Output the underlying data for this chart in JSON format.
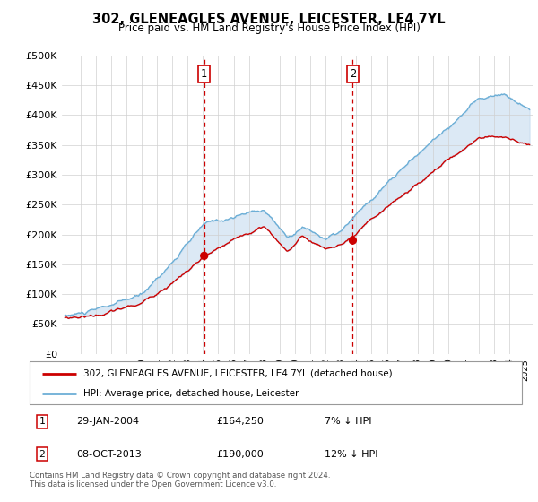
{
  "title": "302, GLENEAGLES AVENUE, LEICESTER, LE4 7YL",
  "subtitle": "Price paid vs. HM Land Registry's House Price Index (HPI)",
  "ylim": [
    0,
    500000
  ],
  "yticks": [
    0,
    50000,
    100000,
    150000,
    200000,
    250000,
    300000,
    350000,
    400000,
    450000,
    500000
  ],
  "ytick_labels": [
    "£0",
    "£50K",
    "£100K",
    "£150K",
    "£200K",
    "£250K",
    "£300K",
    "£350K",
    "£400K",
    "£450K",
    "£500K"
  ],
  "xlim_start": 1994.8,
  "xlim_end": 2025.5,
  "hpi_color": "#6baed6",
  "sale_color": "#cc0000",
  "fill_color": "#c6dbef",
  "marker1_x": 2004.08,
  "marker1_y": 164250,
  "marker1_label": "1",
  "marker1_date": "29-JAN-2004",
  "marker1_price": "£164,250",
  "marker1_hpi": "7% ↓ HPI",
  "marker2_x": 2013.77,
  "marker2_y": 190000,
  "marker2_label": "2",
  "marker2_date": "08-OCT-2013",
  "marker2_price": "£190,000",
  "marker2_hpi": "12% ↓ HPI",
  "legend_label1": "302, GLENEAGLES AVENUE, LEICESTER, LE4 7YL (detached house)",
  "legend_label2": "HPI: Average price, detached house, Leicester",
  "footnote1": "Contains HM Land Registry data © Crown copyright and database right 2024.",
  "footnote2": "This data is licensed under the Open Government Licence v3.0."
}
